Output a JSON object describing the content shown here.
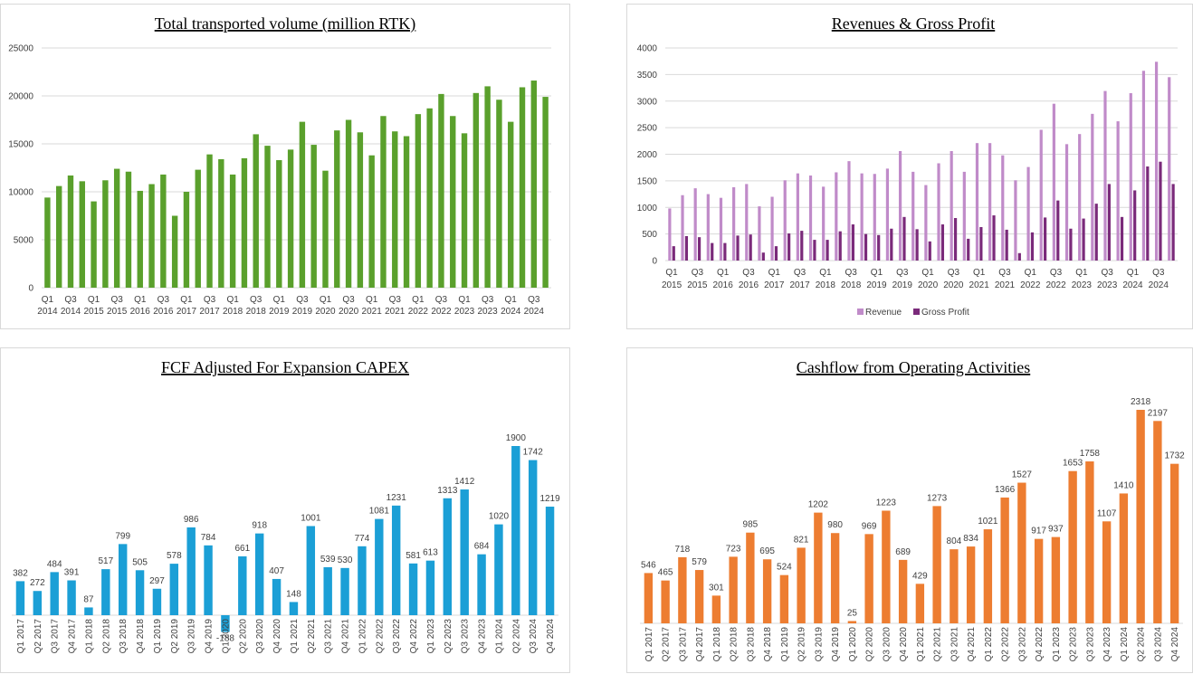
{
  "charts": {
    "volume": {
      "type": "bar",
      "title": "Total transported volume (million RTK)",
      "ylim": [
        0,
        25000
      ],
      "yticks": [
        0,
        5000,
        10000,
        15000,
        20000,
        25000
      ],
      "grid": true,
      "color": "#5aa02c",
      "categories": [
        "Q1 2014",
        "Q2 2014",
        "Q3 2014",
        "Q4 2014",
        "Q1 2015",
        "Q2 2015",
        "Q3 2015",
        "Q4 2015",
        "Q1 2016",
        "Q2 2016",
        "Q3 2016",
        "Q4 2016",
        "Q1 2017",
        "Q2 2017",
        "Q3 2017",
        "Q4 2017",
        "Q1 2018",
        "Q2 2018",
        "Q3 2018",
        "Q4 2018",
        "Q1 2019",
        "Q2 2019",
        "Q3 2019",
        "Q4 2019",
        "Q1 2020",
        "Q2 2020",
        "Q3 2020",
        "Q4 2020",
        "Q1 2021",
        "Q2 2021",
        "Q3 2021",
        "Q4 2021",
        "Q1 2022",
        "Q2 2022",
        "Q3 2022",
        "Q4 2022",
        "Q1 2023",
        "Q2 2023",
        "Q3 2023",
        "Q4 2023",
        "Q1 2024",
        "Q2 2024",
        "Q3 2024",
        "Q4 2024"
      ],
      "xtick_labels": [
        [
          "Q1",
          "2014"
        ],
        [
          "Q3",
          "2014"
        ],
        [
          "Q1",
          "2015"
        ],
        [
          "Q3",
          "2015"
        ],
        [
          "Q1",
          "2016"
        ],
        [
          "Q3",
          "2016"
        ],
        [
          "Q1",
          "2017"
        ],
        [
          "Q3",
          "2017"
        ],
        [
          "Q1",
          "2018"
        ],
        [
          "Q3",
          "2018"
        ],
        [
          "Q1",
          "2019"
        ],
        [
          "Q3",
          "2019"
        ],
        [
          "Q1",
          "2020"
        ],
        [
          "Q3",
          "2020"
        ],
        [
          "Q1",
          "2021"
        ],
        [
          "Q3",
          "2021"
        ],
        [
          "Q1",
          "2022"
        ],
        [
          "Q3",
          "2022"
        ],
        [
          "Q1",
          "2023"
        ],
        [
          "Q3",
          "2023"
        ],
        [
          "Q1",
          "2024"
        ],
        [
          "Q3",
          "2024"
        ]
      ],
      "values": [
        9400,
        10600,
        11700,
        11100,
        9000,
        11200,
        12400,
        12100,
        10100,
        10800,
        11800,
        7500,
        10000,
        12300,
        13900,
        13400,
        11800,
        13500,
        16000,
        14800,
        13300,
        14400,
        17300,
        14900,
        12200,
        16400,
        17500,
        16200,
        13800,
        17900,
        16300,
        15800,
        18100,
        18700,
        20200,
        17900,
        16100,
        20300,
        21000,
        19600,
        17300,
        20900,
        21600,
        19900
      ]
    },
    "revenue": {
      "type": "bar",
      "title": "Revenues & Gross Profit",
      "ylim": [
        0,
        4000
      ],
      "yticks": [
        0,
        500,
        1000,
        1500,
        2000,
        2500,
        3000,
        3500,
        4000
      ],
      "grid": true,
      "legend_position": "bottom",
      "categories": [
        "Q1 2015",
        "Q2 2015",
        "Q3 2015",
        "Q4 2015",
        "Q1 2016",
        "Q2 2016",
        "Q3 2016",
        "Q4 2016",
        "Q1 2017",
        "Q2 2017",
        "Q3 2017",
        "Q4 2017",
        "Q1 2018",
        "Q2 2018",
        "Q3 2018",
        "Q4 2018",
        "Q1 2019",
        "Q2 2019",
        "Q3 2019",
        "Q4 2019",
        "Q1 2020",
        "Q2 2020",
        "Q3 2020",
        "Q4 2020",
        "Q1 2021",
        "Q2 2021",
        "Q3 2021",
        "Q4 2021",
        "Q1 2022",
        "Q2 2022",
        "Q3 2022",
        "Q4 2022",
        "Q1 2023",
        "Q2 2023",
        "Q3 2023",
        "Q4 2023",
        "Q1 2024",
        "Q2 2024",
        "Q3 2024",
        "Q4 2024"
      ],
      "xtick_labels": [
        [
          "Q1",
          "2015"
        ],
        [
          "Q3",
          "2015"
        ],
        [
          "Q1",
          "2016"
        ],
        [
          "Q3",
          "2016"
        ],
        [
          "Q1",
          "2017"
        ],
        [
          "Q3",
          "2017"
        ],
        [
          "Q1",
          "2018"
        ],
        [
          "Q3",
          "2018"
        ],
        [
          "Q1",
          "2019"
        ],
        [
          "Q3",
          "2019"
        ],
        [
          "Q1",
          "2020"
        ],
        [
          "Q3",
          "2020"
        ],
        [
          "Q1",
          "2021"
        ],
        [
          "Q3",
          "2021"
        ],
        [
          "Q1",
          "2022"
        ],
        [
          "Q3",
          "2022"
        ],
        [
          "Q1",
          "2023"
        ],
        [
          "Q3",
          "2023"
        ],
        [
          "Q1",
          "2024"
        ],
        [
          "Q3",
          "2024"
        ]
      ],
      "series": [
        {
          "name": "Revenue",
          "color": "#c08bc9",
          "values": [
            980,
            1230,
            1360,
            1250,
            1180,
            1380,
            1440,
            1020,
            1200,
            1510,
            1640,
            1600,
            1390,
            1660,
            1870,
            1640,
            1630,
            1730,
            2060,
            1670,
            1420,
            1830,
            2060,
            1670,
            2210,
            2210,
            1980,
            1510,
            1760,
            2460,
            2950,
            2190,
            2380,
            2760,
            3190,
            2620,
            3150,
            3570,
            3740,
            3450
          ]
        },
        {
          "name": "Gross Profit",
          "color": "#7a2a7a",
          "values": [
            270,
            460,
            440,
            330,
            330,
            470,
            490,
            150,
            270,
            510,
            560,
            390,
            390,
            550,
            680,
            500,
            480,
            600,
            820,
            590,
            360,
            680,
            800,
            410,
            630,
            850,
            580,
            140,
            530,
            810,
            1130,
            600,
            790,
            1070,
            1440,
            820,
            1320,
            1770,
            1860,
            1440
          ]
        }
      ]
    },
    "fcf": {
      "type": "bar",
      "title": "FCF Adjusted For Expansion CAPEX",
      "ylim": [
        -188,
        1900
      ],
      "color": "#1b9fd6",
      "categories": [
        "Q1 2017",
        "Q2 2017",
        "Q3 2017",
        "Q4 2017",
        "Q1 2018",
        "Q2 2018",
        "Q3 2018",
        "Q4 2018",
        "Q1 2019",
        "Q2 2019",
        "Q3 2019",
        "Q4 2019",
        "Q1 2020",
        "Q2 2020",
        "Q3 2020",
        "Q4 2020",
        "Q1 2021",
        "Q2 2021",
        "Q3 2021",
        "Q4 2021",
        "Q1 2022",
        "Q2 2022",
        "Q3 2022",
        "Q4 2022",
        "Q1 2023",
        "Q2 2023",
        "Q3 2023",
        "Q4 2023",
        "Q1 2024",
        "Q2 2024",
        "Q3 2024",
        "Q4 2024"
      ],
      "values": [
        382,
        272,
        484,
        391,
        87,
        517,
        799,
        505,
        297,
        578,
        986,
        784,
        -188,
        661,
        918,
        407,
        148,
        1001,
        539,
        530,
        774,
        1081,
        1231,
        581,
        613,
        1313,
        1412,
        684,
        1020,
        1900,
        1742,
        1219
      ],
      "data_labels": [
        "382",
        "272",
        "484",
        "391",
        "87",
        "517",
        "799",
        "505",
        "297",
        "578",
        "986",
        "784",
        "-188",
        "661",
        "918",
        "407",
        "148",
        "1001",
        "539",
        "530",
        "774",
        "1081",
        "1231",
        "581",
        "613",
        "1313",
        "1412",
        "684",
        "1020",
        "1900",
        "1742",
        "1219"
      ]
    },
    "cfo": {
      "type": "bar",
      "title": "Cashflow from Operating Activities",
      "ylim": [
        0,
        2318
      ],
      "color": "#ed7d31",
      "categories": [
        "Q1 2017",
        "Q2 2017",
        "Q3 2017",
        "Q4 2017",
        "Q1 2018",
        "Q2 2018",
        "Q3 2018",
        "Q4 2018",
        "Q1 2019",
        "Q2 2019",
        "Q3 2019",
        "Q4 2019",
        "Q1 2020",
        "Q2 2020",
        "Q3 2020",
        "Q4 2020",
        "Q1 2021",
        "Q2 2021",
        "Q3 2021",
        "Q4 2021",
        "Q1 2022",
        "Q2 2022",
        "Q3 2022",
        "Q4 2022",
        "Q1 2023",
        "Q2 2023",
        "Q3 2023",
        "Q4 2023",
        "Q1 2024",
        "Q2 2024",
        "Q3 2024",
        "Q4 2024"
      ],
      "values": [
        546,
        465,
        718,
        579,
        301,
        723,
        985,
        695,
        524,
        821,
        1202,
        980,
        25,
        969,
        1223,
        689,
        429,
        1273,
        804,
        834,
        1021,
        1366,
        1527,
        917,
        937,
        1653,
        1758,
        1107,
        1410,
        2318,
        2197,
        1732
      ],
      "data_labels": [
        "546",
        "465",
        "718",
        "579",
        "301",
        "723",
        "985",
        "695",
        "524",
        "821",
        "1202",
        "980",
        "25",
        "969",
        "1223",
        "689",
        "429",
        "1273",
        "804",
        "834",
        "1021",
        "1366",
        "1527",
        "917",
        "937",
        "1653",
        "1758",
        "1107",
        "1410",
        "2318",
        "2197",
        "1732"
      ]
    }
  }
}
